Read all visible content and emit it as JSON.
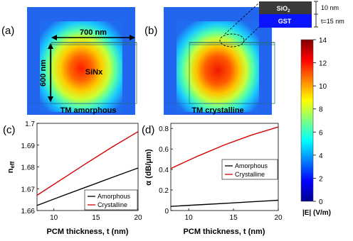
{
  "panels": {
    "a": {
      "label": "(a)",
      "width_label": "700 nm",
      "height_label": "600 nm",
      "material_label": "SiNx",
      "caption": "TM amorphous"
    },
    "b": {
      "label": "(b)",
      "caption": "TM crystalline"
    },
    "c": {
      "label": "(c)"
    },
    "d": {
      "label": "(d)"
    }
  },
  "inset": {
    "top_layer": "SiO",
    "top_layer_sub": "2",
    "bottom_layer": "GST",
    "top_thickness": "10 nm",
    "bottom_thickness": "t=15 nm"
  },
  "colorbar": {
    "ticks": [
      "14",
      "12",
      "10",
      "8",
      "6",
      "4",
      "2",
      "0"
    ],
    "label": "|E| (V/m)",
    "range": [
      0,
      14
    ]
  },
  "chart_data": [
    {
      "type": "line",
      "panel": "c",
      "xlabel": "PCM thickness, t (nm)",
      "ylabel_main": "n",
      "ylabel_sub": "eff",
      "xlim": [
        8,
        20
      ],
      "ylim": [
        1.66,
        1.7
      ],
      "x_ticks": [
        "10",
        "15",
        "20"
      ],
      "y_ticks": [
        "1.66",
        "1.67",
        "1.68",
        "1.69",
        "1.7"
      ],
      "legend_position": "bottom-right",
      "series": [
        {
          "name": "Amorphous",
          "color": "#000000",
          "x": [
            8,
            11,
            14,
            17,
            20
          ],
          "values": [
            1.6623,
            1.6667,
            1.671,
            1.6753,
            1.6795
          ]
        },
        {
          "name": "Crystalline",
          "color": "#d60000",
          "x": [
            8,
            11,
            14,
            17,
            20
          ],
          "values": [
            1.667,
            1.6745,
            1.682,
            1.6893,
            1.6962
          ]
        }
      ]
    },
    {
      "type": "line",
      "panel": "d",
      "xlabel": "PCM thickness, t (nm)",
      "ylabel": "α (dB/μm)",
      "xlim": [
        8,
        20
      ],
      "ylim": [
        0,
        0.85
      ],
      "x_ticks": [
        "10",
        "15",
        "20"
      ],
      "y_ticks": [
        "0",
        "0.2",
        "0.4",
        "0.6",
        "0.8"
      ],
      "legend_position": "top-right",
      "series": [
        {
          "name": "Amorphous",
          "color": "#000000",
          "x": [
            8,
            11,
            14,
            17,
            20
          ],
          "values": [
            0.04,
            0.055,
            0.07,
            0.085,
            0.1
          ]
        },
        {
          "name": "Crystalline",
          "color": "#d60000",
          "x": [
            8,
            11,
            14,
            17,
            20
          ],
          "values": [
            0.41,
            0.53,
            0.64,
            0.735,
            0.815
          ]
        }
      ]
    }
  ]
}
